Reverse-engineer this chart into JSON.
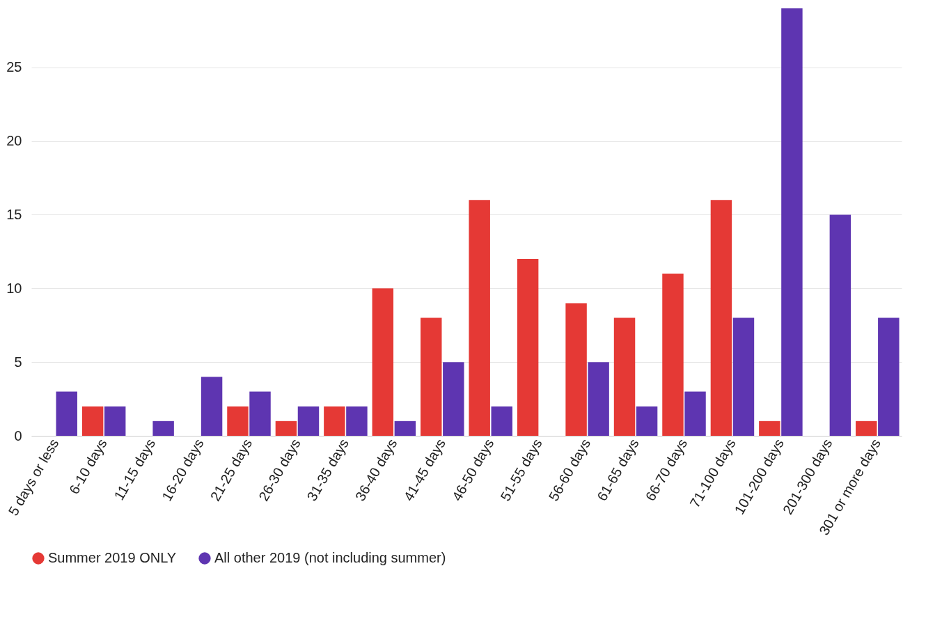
{
  "chart_data": {
    "type": "bar",
    "categories": [
      "5 days or less",
      "6-10 days",
      "11-15 days",
      "16-20 days",
      "21-25 days",
      "26-30 days",
      "31-35 days",
      "36-40 days",
      "41-45 days",
      "46-50 days",
      "51-55 days",
      "56-60 days",
      "61-65 days",
      "66-70 days",
      "71-100 days",
      "101-200 days",
      "201-300 days",
      "301 or more days"
    ],
    "series": [
      {
        "name": "Summer 2019 ONLY",
        "color": "#e53935",
        "values": [
          0,
          2,
          0,
          0,
          2,
          1,
          2,
          10,
          8,
          16,
          12,
          9,
          8,
          11,
          16,
          1,
          0,
          1
        ]
      },
      {
        "name": "All other 2019 (not including summer)",
        "color": "#5e35b1",
        "values": [
          3,
          2,
          1,
          4,
          3,
          2,
          2,
          1,
          5,
          2,
          0,
          5,
          2,
          3,
          8,
          29,
          15,
          8
        ]
      }
    ],
    "ylim": [
      0,
      29
    ],
    "yticks": [
      0,
      5,
      10,
      15,
      20,
      25
    ],
    "grid": "y",
    "legend": "bottom"
  }
}
